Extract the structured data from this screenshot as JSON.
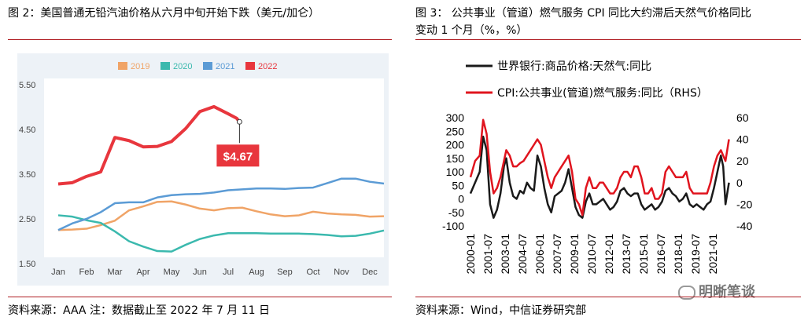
{
  "left_panel": {
    "title": "图 2：美国普通无铅汽油价格从六月中旬开始下跌（美元/加仑）",
    "source": "资料来源：AAA   注：数据截止至 2022 年 7 月 11 日"
  },
  "right_panel": {
    "title_line1": "图 3：   公共事业（管道）燃气服务 CPI 同比大约滞后天然气价格同比",
    "title_line2": "变动 1 个月（%，%）",
    "source": "资料来源：Wind，中信证券研究部"
  },
  "watermark": "明晰笔谈",
  "chart_data": [
    {
      "type": "line",
      "colors": {
        "2019": "#f0a467",
        "2020": "#3bb9ae",
        "2021": "#5b9bd5",
        "2022": "#e8363d",
        "plot_bg": "#ffffff",
        "frame_bg": "#edf2f7"
      },
      "legend_position": "top",
      "categories": [
        "Jan",
        "Feb",
        "Mar",
        "Apr",
        "May",
        "Jun",
        "Jul",
        "Aug",
        "Sep",
        "Oct",
        "Nov",
        "Dec"
      ],
      "yticks": [
        "5.50",
        "4.50",
        "3.50",
        "2.50",
        "1.50"
      ],
      "ylim": [
        1.5,
        5.5
      ],
      "series": [
        {
          "name": "2019",
          "x": [
            0,
            0.5,
            1,
            1.5,
            2,
            2.5,
            3,
            3.5,
            4,
            4.5,
            5,
            5.5,
            6,
            6.5,
            7,
            7.5,
            8,
            8.5,
            9,
            9.5,
            10,
            10.5,
            11,
            11.5
          ],
          "values": [
            2.25,
            2.26,
            2.28,
            2.36,
            2.46,
            2.69,
            2.78,
            2.88,
            2.89,
            2.82,
            2.73,
            2.69,
            2.74,
            2.75,
            2.67,
            2.6,
            2.56,
            2.58,
            2.66,
            2.62,
            2.6,
            2.59,
            2.55,
            2.56
          ]
        },
        {
          "name": "2020",
          "x": [
            0,
            0.5,
            1,
            1.5,
            2,
            2.5,
            3,
            3.5,
            4,
            4.5,
            5,
            5.5,
            6,
            6.5,
            7,
            7.5,
            8,
            8.5,
            9,
            9.5,
            10,
            10.5,
            11,
            11.5
          ],
          "values": [
            2.58,
            2.55,
            2.47,
            2.41,
            2.22,
            2.0,
            1.88,
            1.78,
            1.77,
            1.92,
            2.05,
            2.13,
            2.18,
            2.18,
            2.18,
            2.17,
            2.17,
            2.17,
            2.16,
            2.14,
            2.11,
            2.12,
            2.17,
            2.24
          ]
        },
        {
          "name": "2021",
          "x": [
            0,
            0.5,
            1,
            1.5,
            2,
            2.5,
            3,
            3.5,
            4,
            4.5,
            5,
            5.5,
            6,
            6.5,
            7,
            7.5,
            8,
            8.5,
            9,
            9.5,
            10,
            10.5,
            11,
            11.5
          ],
          "values": [
            2.25,
            2.4,
            2.5,
            2.65,
            2.85,
            2.87,
            2.87,
            2.98,
            3.03,
            3.05,
            3.06,
            3.09,
            3.14,
            3.16,
            3.18,
            3.18,
            3.17,
            3.19,
            3.2,
            3.3,
            3.4,
            3.4,
            3.33,
            3.29
          ]
        },
        {
          "name": "2022",
          "x": [
            0,
            0.5,
            1,
            1.5,
            2,
            2.5,
            3,
            3.5,
            4,
            4.5,
            5,
            5.5,
            6,
            6.3,
            6.4
          ],
          "values": [
            3.28,
            3.31,
            3.45,
            3.55,
            4.32,
            4.25,
            4.11,
            4.12,
            4.23,
            4.52,
            4.9,
            5.01,
            4.85,
            4.75,
            4.67
          ]
        }
      ],
      "annotation": {
        "label": "$4.67",
        "x": 6.4,
        "value": 4.67
      }
    },
    {
      "type": "line",
      "dual_axis": true,
      "legend_position": "top",
      "categories": [
        "2000-01",
        "2001-07",
        "2003-01",
        "2004-07",
        "2006-01",
        "2007-07",
        "2009-01",
        "2010-07",
        "2012-01",
        "2013-07",
        "2015-01",
        "2016-07",
        "2018-01",
        "2019-07",
        "2021-01"
      ],
      "y_left": {
        "ticks": [
          300,
          250,
          200,
          150,
          100,
          50,
          0,
          -50,
          -100
        ],
        "lim": [
          -100,
          300
        ]
      },
      "y_right": {
        "ticks": [
          60,
          40,
          20,
          0,
          -20,
          -40
        ],
        "lim": [
          -40,
          60
        ]
      },
      "series": [
        {
          "name": "世界银行:商品价格:天然气:同比",
          "color": "#1a1a1a",
          "axis": "left",
          "x": [
            2000.0,
            2000.4,
            2000.8,
            2001.1,
            2001.4,
            2001.7,
            2002.0,
            2002.3,
            2002.6,
            2002.9,
            2003.1,
            2003.4,
            2003.7,
            2004.0,
            2004.3,
            2004.6,
            2004.9,
            2005.2,
            2005.5,
            2005.8,
            2006.1,
            2006.4,
            2006.7,
            2007.0,
            2007.3,
            2007.6,
            2007.9,
            2008.2,
            2008.5,
            2008.8,
            2009.1,
            2009.4,
            2009.7,
            2010.0,
            2010.3,
            2010.6,
            2010.9,
            2011.2,
            2011.5,
            2011.8,
            2012.1,
            2012.4,
            2012.7,
            2013.0,
            2013.3,
            2013.6,
            2013.9,
            2014.2,
            2014.5,
            2014.8,
            2015.1,
            2015.4,
            2015.7,
            2016.0,
            2016.3,
            2016.6,
            2016.9,
            2017.2,
            2017.5,
            2017.8,
            2018.1,
            2018.4,
            2018.7,
            2019.0,
            2019.3,
            2019.6,
            2019.9,
            2020.2,
            2020.5,
            2020.8,
            2021.1,
            2021.4,
            2021.7,
            2021.9,
            2022.1,
            2022.4
          ],
          "values": [
            20,
            60,
            100,
            230,
            180,
            -20,
            -70,
            -40,
            20,
            120,
            150,
            60,
            10,
            0,
            30,
            20,
            60,
            40,
            30,
            160,
            120,
            40,
            -20,
            -50,
            10,
            20,
            30,
            60,
            110,
            40,
            -30,
            -60,
            -70,
            -10,
            20,
            -20,
            -20,
            -10,
            0,
            -20,
            -40,
            -30,
            -10,
            30,
            40,
            20,
            10,
            20,
            20,
            -20,
            -40,
            -30,
            -20,
            -40,
            -30,
            -10,
            30,
            40,
            20,
            10,
            -10,
            0,
            20,
            -20,
            -30,
            -20,
            -30,
            -40,
            -20,
            -10,
            40,
            100,
            160,
            120,
            -20,
            60
          ]
        },
        {
          "name": "CPI:公共事业(管道)燃气服务:同比（RHS）",
          "color": "#e0141e",
          "axis": "right",
          "x": [
            2000.0,
            2000.4,
            2000.8,
            2001.1,
            2001.4,
            2001.7,
            2002.0,
            2002.3,
            2002.6,
            2002.9,
            2003.1,
            2003.4,
            2003.7,
            2004.0,
            2004.3,
            2004.6,
            2004.9,
            2005.2,
            2005.5,
            2005.8,
            2006.1,
            2006.4,
            2006.7,
            2007.0,
            2007.3,
            2007.6,
            2007.9,
            2008.2,
            2008.5,
            2008.8,
            2009.1,
            2009.4,
            2009.7,
            2010.0,
            2010.3,
            2010.6,
            2010.9,
            2011.2,
            2011.5,
            2011.8,
            2012.1,
            2012.4,
            2012.7,
            2013.0,
            2013.3,
            2013.6,
            2013.9,
            2014.2,
            2014.5,
            2014.8,
            2015.1,
            2015.4,
            2015.7,
            2016.0,
            2016.3,
            2016.6,
            2016.9,
            2017.2,
            2017.5,
            2017.8,
            2018.1,
            2018.4,
            2018.7,
            2019.0,
            2019.3,
            2019.6,
            2019.9,
            2020.2,
            2020.5,
            2020.8,
            2021.1,
            2021.4,
            2021.7,
            2021.9,
            2022.1,
            2022.4
          ],
          "values": [
            5,
            20,
            25,
            58,
            45,
            10,
            -10,
            -5,
            5,
            20,
            30,
            25,
            15,
            15,
            18,
            20,
            25,
            30,
            35,
            40,
            35,
            20,
            5,
            -5,
            5,
            10,
            15,
            20,
            25,
            10,
            -15,
            -20,
            -30,
            -5,
            5,
            -5,
            -5,
            0,
            0,
            -5,
            -10,
            -10,
            -5,
            5,
            10,
            10,
            5,
            15,
            15,
            5,
            -10,
            -10,
            -5,
            -15,
            -15,
            -10,
            10,
            15,
            10,
            5,
            5,
            5,
            10,
            -5,
            -10,
            -10,
            -10,
            -10,
            -10,
            0,
            15,
            25,
            30,
            25,
            20,
            40
          ]
        }
      ]
    }
  ]
}
